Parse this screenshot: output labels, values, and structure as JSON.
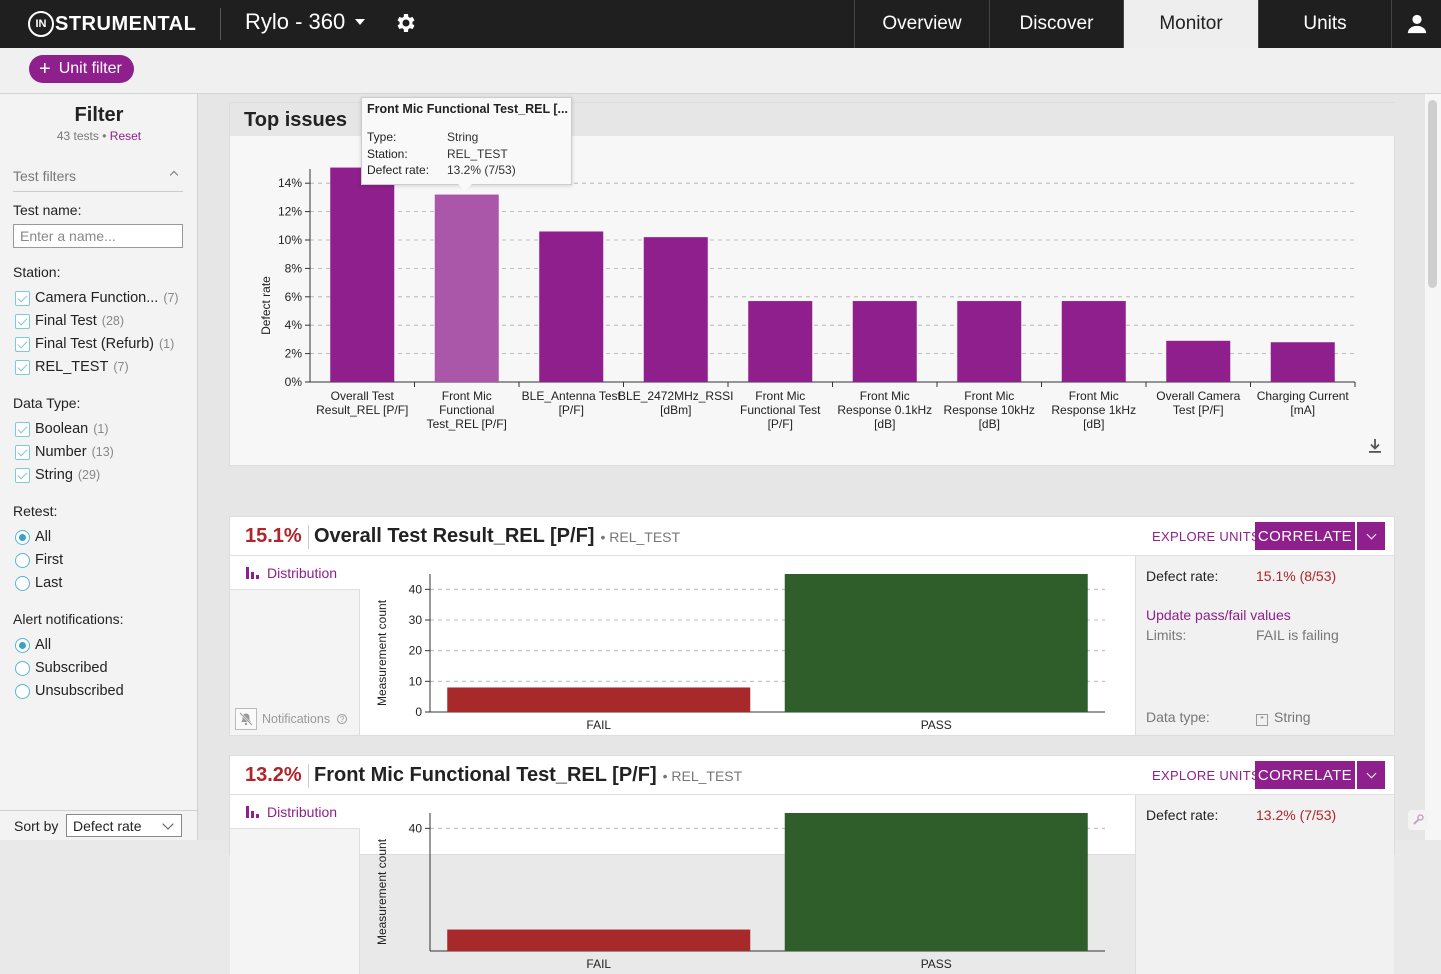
{
  "topbar": {
    "logo_mark": "IN",
    "logo_text": "STRUMENTAL",
    "project": "Rylo - 360",
    "tabs": [
      {
        "label": "Overview",
        "active": false
      },
      {
        "label": "Discover",
        "active": false
      },
      {
        "label": "Monitor",
        "active": true
      },
      {
        "label": "Units",
        "active": false
      }
    ]
  },
  "filterbar": {
    "unit_filter_label": "Unit filter"
  },
  "sidebar": {
    "title": "Filter",
    "tests_count": "43 tests",
    "bullet": "•",
    "reset": "Reset",
    "section": "Test filters",
    "test_name_label": "Test name:",
    "test_name_placeholder": "Enter a name...",
    "station_label": "Station:",
    "stations": [
      {
        "label": "Camera Function...",
        "count": "(7)"
      },
      {
        "label": "Final Test",
        "count": "(28)"
      },
      {
        "label": "Final Test (Refurb)",
        "count": "(1)"
      },
      {
        "label": "REL_TEST",
        "count": "(7)"
      }
    ],
    "data_type_label": "Data Type:",
    "data_types": [
      {
        "label": "Boolean",
        "count": "(1)"
      },
      {
        "label": "Number",
        "count": "(13)"
      },
      {
        "label": "String",
        "count": "(29)"
      }
    ],
    "retest_label": "Retest:",
    "retest": [
      {
        "label": "All",
        "selected": true
      },
      {
        "label": "First",
        "selected": false
      },
      {
        "label": "Last",
        "selected": false
      }
    ],
    "alerts_label": "Alert notifications:",
    "alerts": [
      {
        "label": "All",
        "selected": true
      },
      {
        "label": "Subscribed",
        "selected": false
      },
      {
        "label": "Unsubscribed",
        "selected": false
      }
    ],
    "sort_label": "Sort by",
    "sort_value": "Defect rate"
  },
  "top_issues": {
    "title": "Top issues"
  },
  "tooltip": {
    "title": "Front Mic Functional Test_REL [...",
    "rows": [
      {
        "k": "Type:",
        "v": "String"
      },
      {
        "k": "Station:",
        "v": "REL_TEST"
      },
      {
        "k": "Defect rate:",
        "v": "13.2% (7/53)"
      }
    ]
  },
  "chart_data": [
    {
      "type": "bar",
      "ylabel": "Defect rate",
      "ylim": [
        0,
        15
      ],
      "yticks": [
        "0%",
        "2%",
        "4%",
        "6%",
        "8%",
        "10%",
        "12%",
        "14%"
      ],
      "grid": true,
      "categories": [
        [
          "Overall Test",
          "Result_REL [P/F]"
        ],
        [
          "Front Mic",
          "Functional",
          "Test_REL [P/F]"
        ],
        [
          "BLE_Antenna Test",
          "[P/F]"
        ],
        [
          "BLE_2472MHz_RSSI",
          "[dBm]"
        ],
        [
          "Front Mic",
          "Functional Test",
          "[P/F]"
        ],
        [
          "Front Mic",
          "Response 0.1kHz",
          "[dB]"
        ],
        [
          "Front Mic",
          "Response 10kHz",
          "[dB]"
        ],
        [
          "Front Mic",
          "Response 1kHz",
          "[dB]"
        ],
        [
          "Overall Camera",
          "Test [P/F]"
        ],
        [
          "Charging Current",
          "[mA]"
        ]
      ],
      "values": [
        15.1,
        13.2,
        10.6,
        10.2,
        5.7,
        5.7,
        5.7,
        5.7,
        2.9,
        2.8
      ],
      "highlight_index": 1,
      "color": "#8e1f8c",
      "highlight_color": "#ab57a9"
    },
    {
      "type": "bar",
      "ylabel": "Measurement count",
      "categories": [
        "FAIL",
        "PASS"
      ],
      "values": [
        8,
        45
      ],
      "colors": [
        "#a8292a",
        "#2f5e2a"
      ],
      "ylim": [
        0,
        45
      ],
      "yticks": [
        "0",
        "10",
        "20",
        "30",
        "40"
      ],
      "grid": true
    },
    {
      "type": "bar",
      "ylabel": "Measurement count",
      "categories": [
        "FAIL",
        "PASS"
      ],
      "values": [
        7,
        46
      ],
      "colors": [
        "#a8292a",
        "#2f5e2a"
      ],
      "ylim": [
        0,
        45
      ],
      "yticks": [
        "40"
      ],
      "grid": true
    }
  ],
  "issues": [
    {
      "rate": "15.1%",
      "name": "Overall Test Result_REL [P/F]",
      "station": "• REL_TEST",
      "explore": "EXPLORE UNITS",
      "correlate": "CORRELATE",
      "distribution": "Distribution",
      "notifications": "Notifications",
      "defect_label": "Defect rate:",
      "defect_value": "15.1% (8/53)",
      "update_link": "Update pass/fail values",
      "limits_label": "Limits:",
      "limits_value": "FAIL is failing",
      "dtype_label": "Data type:",
      "dtype_value": "String"
    },
    {
      "rate": "13.2%",
      "name": "Front Mic Functional Test_REL [P/F]",
      "station": "• REL_TEST",
      "explore": "EXPLORE UNITS",
      "correlate": "CORRELATE",
      "distribution": "Distribution",
      "defect_label": "Defect rate:",
      "defect_value": "13.2% (7/53)"
    }
  ]
}
